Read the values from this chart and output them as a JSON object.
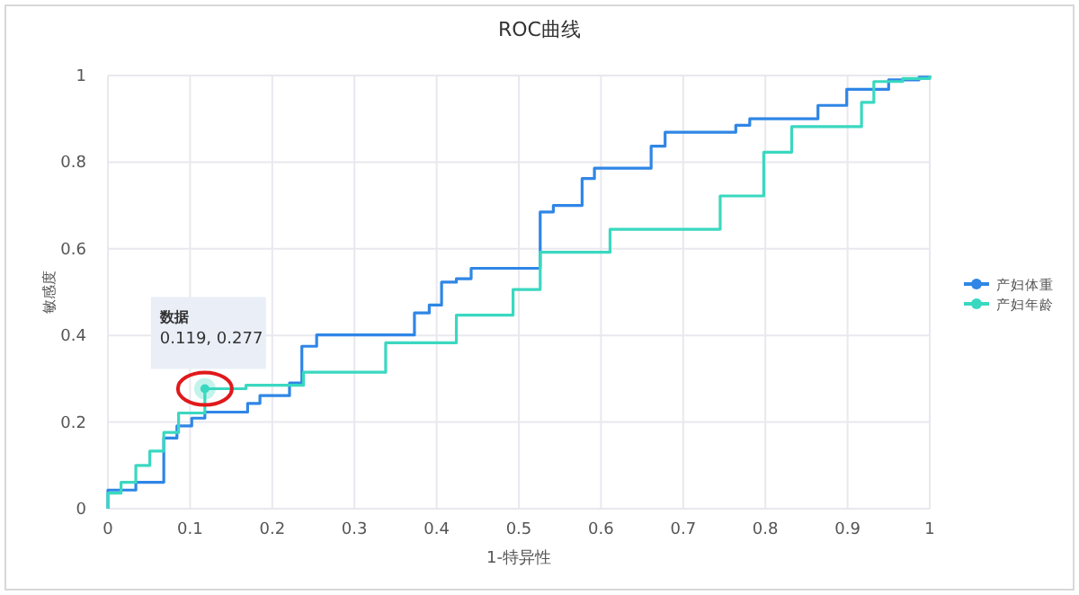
{
  "chart_data": {
    "type": "step",
    "title": "ROC曲线",
    "xlabel": "1-特异性",
    "ylabel": "敏感度",
    "xlim": [
      0,
      1
    ],
    "ylim": [
      0,
      1
    ],
    "xticks": [
      0,
      0.1,
      0.2,
      0.3,
      0.4,
      0.5,
      0.6,
      0.7,
      0.8,
      0.9,
      1
    ],
    "yticks": [
      0,
      0.2,
      0.4,
      0.6,
      0.8,
      1
    ],
    "grid": true,
    "legend": "right",
    "line_style": "solid",
    "annotations": [
      "数据",
      "0.119, 0.277"
    ],
    "series": [
      {
        "name": "产妇体重",
        "color": "#2f86e6",
        "x": [
          0,
          0,
          0.034,
          0.068,
          0.084,
          0.102,
          0.118,
          0.17,
          0.185,
          0.221,
          0.236,
          0.254,
          0.373,
          0.391,
          0.406,
          0.424,
          0.442,
          0.526,
          0.542,
          0.577,
          0.592,
          0.661,
          0.678,
          0.764,
          0.781,
          0.864,
          0.899,
          0.95,
          0.987,
          1
        ],
        "values": [
          0,
          0.043,
          0.061,
          0.163,
          0.191,
          0.209,
          0.223,
          0.243,
          0.261,
          0.29,
          0.375,
          0.401,
          0.452,
          0.47,
          0.523,
          0.531,
          0.555,
          0.685,
          0.7,
          0.762,
          0.786,
          0.837,
          0.869,
          0.885,
          0.9,
          0.931,
          0.968,
          0.99,
          0.996,
          1
        ]
      },
      {
        "name": "产妇年龄",
        "color": "#3ad8c0",
        "x": [
          0,
          0,
          0.016,
          0.034,
          0.051,
          0.068,
          0.086,
          0.118,
          0.168,
          0.238,
          0.338,
          0.424,
          0.493,
          0.526,
          0.611,
          0.745,
          0.798,
          0.832,
          0.917,
          0.932,
          0.967,
          1
        ],
        "values": [
          0,
          0.036,
          0.061,
          0.1,
          0.133,
          0.176,
          0.221,
          0.277,
          0.285,
          0.315,
          0.383,
          0.447,
          0.506,
          0.592,
          0.645,
          0.722,
          0.823,
          0.882,
          0.938,
          0.986,
          0.993,
          1
        ]
      }
    ]
  }
}
